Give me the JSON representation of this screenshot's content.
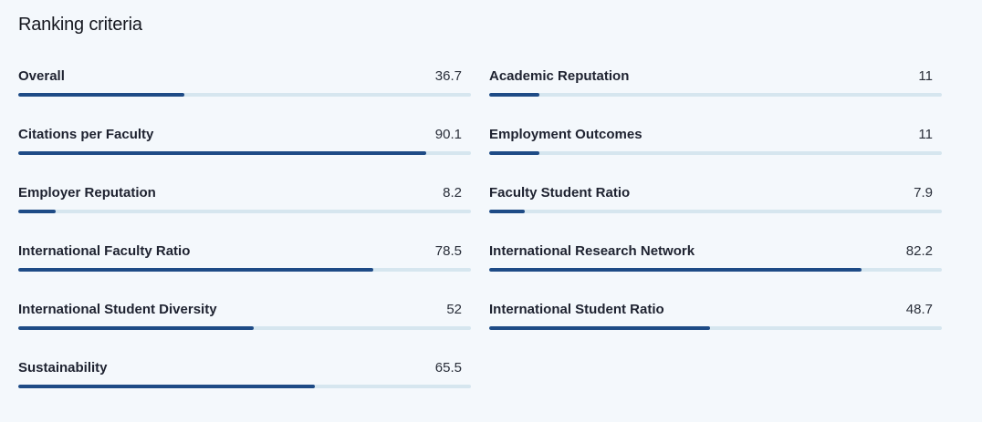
{
  "page": {
    "title": "Ranking criteria"
  },
  "colors": {
    "background": "#f4f8fc",
    "track": "#d6e6ef",
    "fill": "#1e4b86"
  },
  "criteria": [
    {
      "label": "Overall",
      "value": "36.7",
      "progress_percent": 36.7
    },
    {
      "label": "Academic Reputation",
      "value": "11",
      "progress_percent": 11
    },
    {
      "label": "Citations per Faculty",
      "value": "90.1",
      "progress_percent": 90.1
    },
    {
      "label": "Employment Outcomes",
      "value": "11",
      "progress_percent": 11
    },
    {
      "label": "Employer Reputation",
      "value": "8.2",
      "progress_percent": 8.2
    },
    {
      "label": "Faculty Student Ratio",
      "value": "7.9",
      "progress_percent": 7.9
    },
    {
      "label": "International Faculty Ratio",
      "value": "78.5",
      "progress_percent": 78.5
    },
    {
      "label": "International Research Network",
      "value": "82.2",
      "progress_percent": 82.2
    },
    {
      "label": "International Student Diversity",
      "value": "52",
      "progress_percent": 52
    },
    {
      "label": "International Student Ratio",
      "value": "48.7",
      "progress_percent": 48.7
    },
    {
      "label": "Sustainability",
      "value": "65.5",
      "progress_percent": 65.5
    }
  ]
}
